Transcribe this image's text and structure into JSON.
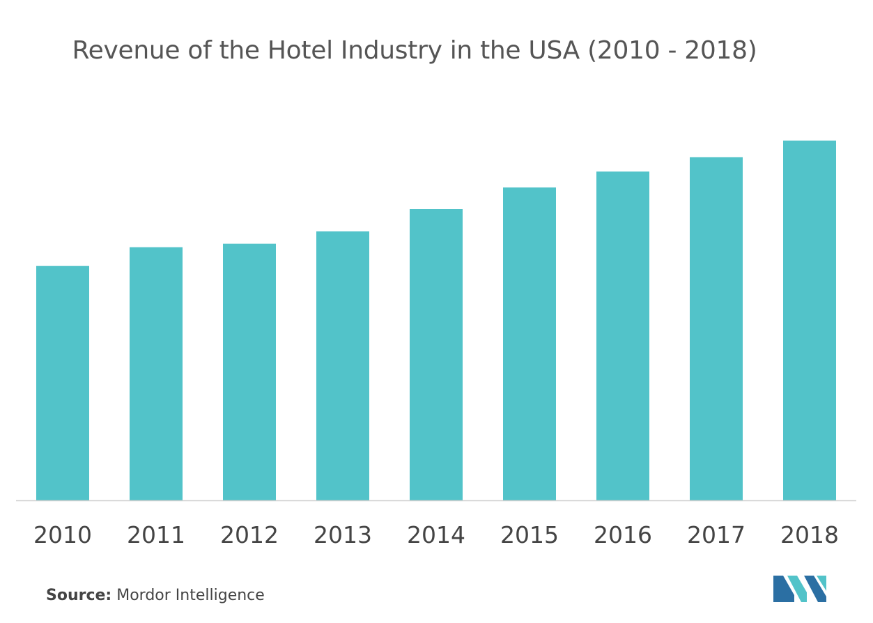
{
  "chart_data": {
    "type": "bar",
    "title": "Revenue of the Hotel Industry in the USA (2010 - 2018)",
    "categories": [
      "2010",
      "2011",
      "2012",
      "2013",
      "2014",
      "2015",
      "2016",
      "2017",
      "2018"
    ],
    "values": [
      325,
      351,
      356,
      373,
      404,
      434,
      456,
      476,
      499
    ],
    "xlabel": "",
    "ylabel": "",
    "ylim": [
      0,
      520
    ],
    "grid": false,
    "legend": "none",
    "bar_color": "#52c3c9",
    "axis_color": "#d0d0d0"
  },
  "source": {
    "label": "Source:",
    "text": "Mordor Intelligence"
  },
  "logo": {
    "icon": "mordor-intelligence-logo-icon",
    "colors": [
      "#2b6fa3",
      "#52c3c9"
    ]
  }
}
